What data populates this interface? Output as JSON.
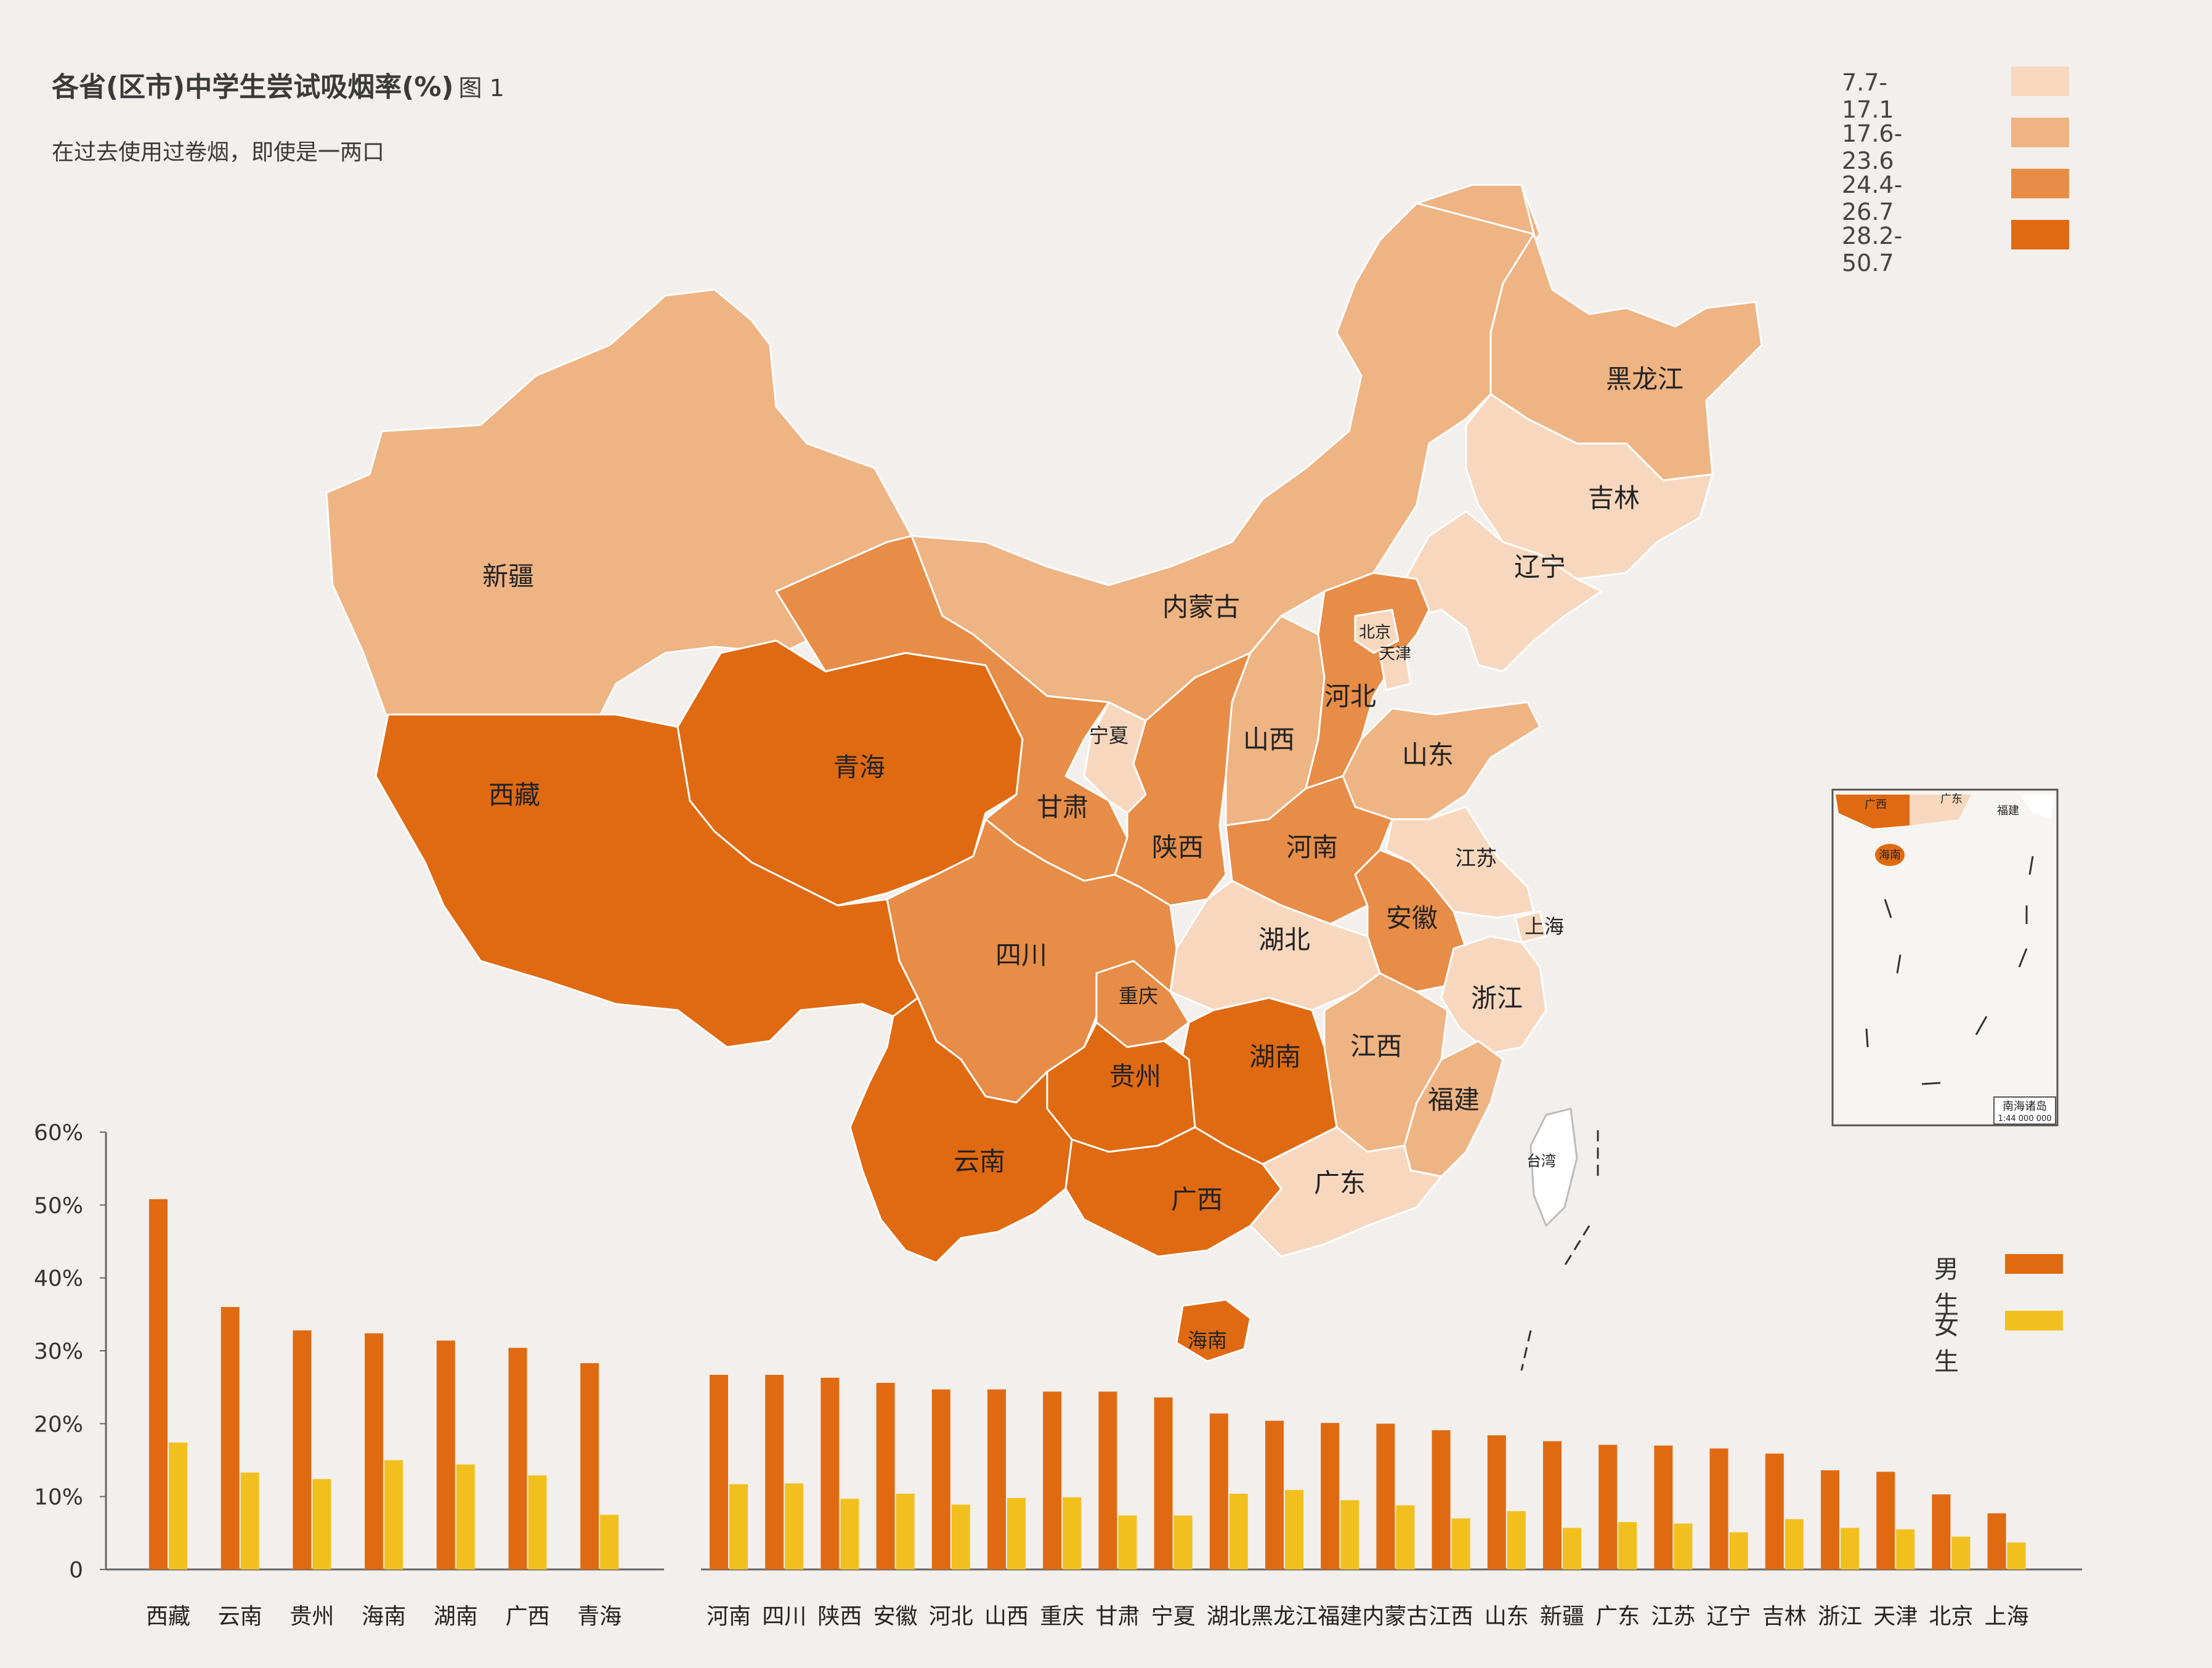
{
  "title": "各省(区市)中学生尝试吸烟率(%)",
  "title_suffix": "图 1",
  "subtitle": "在过去使用过卷烟，即使是一两口",
  "map_legend": [
    {
      "label": "7.7-17.1",
      "color": "#f7d8bf"
    },
    {
      "label": "17.6-23.6",
      "color": "#efb483"
    },
    {
      "label": "24.4-26.7",
      "color": "#e78d47"
    },
    {
      "label": "28.2-50.7",
      "color": "#e06a12"
    }
  ],
  "inset": {
    "title": "南海诸岛",
    "scale": "1:44 000 000",
    "labels": [
      "广西",
      "广东",
      "福建",
      "海南"
    ]
  },
  "map_labels": [
    "新疆",
    "西藏",
    "青海",
    "甘肃",
    "内蒙古",
    "宁夏",
    "陕西",
    "山西",
    "河北",
    "北京",
    "天津",
    "山东",
    "河南",
    "四川",
    "重庆",
    "湖北",
    "安徽",
    "江苏",
    "上海",
    "浙江",
    "湖南",
    "贵州",
    "云南",
    "广西",
    "广东",
    "江西",
    "福建",
    "海南",
    "台湾",
    "黑龙江",
    "吉林",
    "辽宁"
  ],
  "bar_legend": [
    {
      "label": "男生",
      "color": "#e06a12"
    },
    {
      "label": "女生",
      "color": "#f2c01e"
    }
  ],
  "chart_data": {
    "type": "bar",
    "ylim": [
      0,
      60
    ],
    "yticks": [
      "0",
      "10%",
      "20%",
      "30%",
      "40%",
      "50%",
      "60%"
    ],
    "grid": false,
    "categories": [
      "西藏",
      "云南",
      "贵州",
      "海南",
      "湖南",
      "广西",
      "青海",
      "河南",
      "四川",
      "陕西",
      "安徽",
      "河北",
      "山西",
      "重庆",
      "甘肃",
      "宁夏",
      "湖北",
      "黑龙江",
      "福建",
      "内蒙古",
      "江西",
      "山东",
      "新疆",
      "广东",
      "江苏",
      "辽宁",
      "吉林",
      "浙江",
      "天津",
      "北京",
      "上海"
    ],
    "series": [
      {
        "name": "男生",
        "color": "#e06a12",
        "values": [
          50.8,
          36.0,
          32.8,
          32.4,
          31.4,
          30.4,
          28.3,
          26.7,
          26.7,
          26.3,
          25.6,
          24.7,
          24.7,
          24.4,
          24.4,
          23.6,
          21.4,
          20.4,
          20.1,
          20.0,
          19.1,
          18.4,
          17.6,
          17.1,
          17.0,
          16.6,
          15.9,
          13.6,
          13.4,
          10.3,
          7.7
        ]
      },
      {
        "name": "女生",
        "color": "#f2c01e",
        "values": [
          17.4,
          13.3,
          12.4,
          15.0,
          14.4,
          12.9,
          7.5,
          11.7,
          11.8,
          9.7,
          10.4,
          8.9,
          9.8,
          9.9,
          7.4,
          7.4,
          10.4,
          10.9,
          9.5,
          8.8,
          7.0,
          8.0,
          5.7,
          6.5,
          6.3,
          5.1,
          6.9,
          5.7,
          5.5,
          4.5,
          3.7
        ]
      }
    ]
  }
}
